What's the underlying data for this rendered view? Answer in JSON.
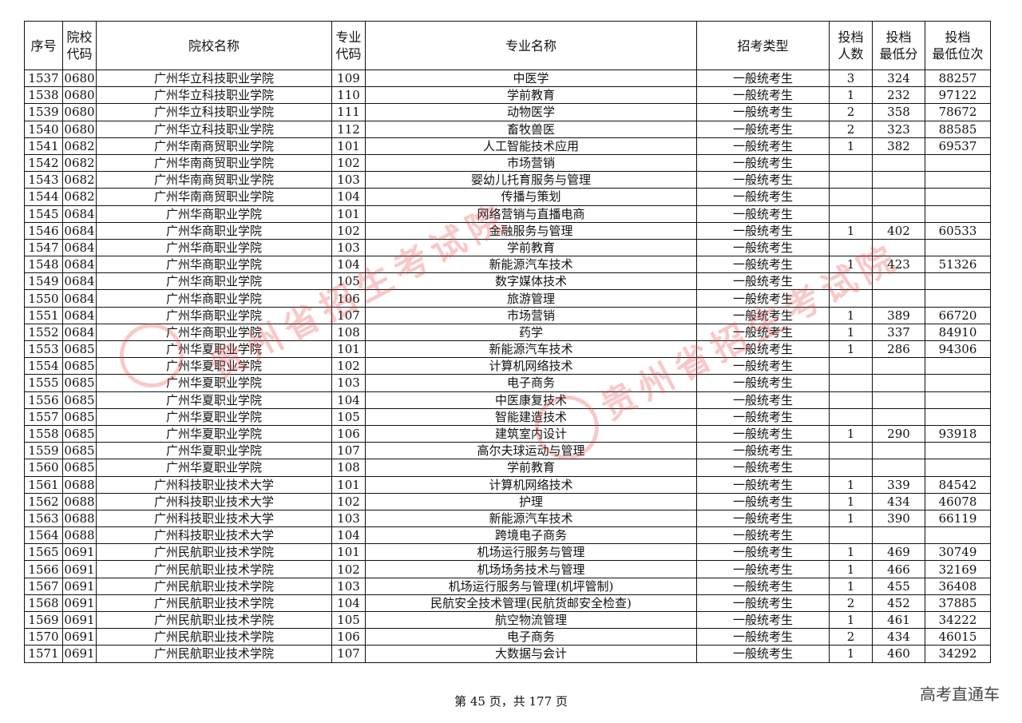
{
  "headers": [
    "序号",
    "院校\n代码",
    "院校名称",
    "专业\n代码",
    "专业名称",
    "招考类型",
    "投档\n人数",
    "投档\n最低分",
    "投档\n最低位次"
  ],
  "rows": [
    [
      "1537",
      "0680",
      "广州华立科技职业学院",
      "109",
      "中医学",
      "一般统考生",
      "3",
      "324",
      "88257"
    ],
    [
      "1538",
      "0680",
      "广州华立科技职业学院",
      "110",
      "学前教育",
      "一般统考生",
      "1",
      "232",
      "97122"
    ],
    [
      "1539",
      "0680",
      "广州华立科技职业学院",
      "111",
      "动物医学",
      "一般统考生",
      "2",
      "358",
      "78672"
    ],
    [
      "1540",
      "0680",
      "广州华立科技职业学院",
      "112",
      "畜牧兽医",
      "一般统考生",
      "2",
      "323",
      "88585"
    ],
    [
      "1541",
      "0682",
      "广州华南商贸职业学院",
      "101",
      "人工智能技术应用",
      "一般统考生",
      "1",
      "382",
      "69537"
    ],
    [
      "1542",
      "0682",
      "广州华南商贸职业学院",
      "102",
      "市场营销",
      "一般统考生",
      "",
      "",
      ""
    ],
    [
      "1543",
      "0682",
      "广州华南商贸职业学院",
      "103",
      "婴幼儿托育服务与管理",
      "一般统考生",
      "",
      "",
      ""
    ],
    [
      "1544",
      "0682",
      "广州华南商贸职业学院",
      "104",
      "传播与策划",
      "一般统考生",
      "",
      "",
      ""
    ],
    [
      "1545",
      "0684",
      "广州华商职业学院",
      "101",
      "网络营销与直播电商",
      "一般统考生",
      "",
      "",
      ""
    ],
    [
      "1546",
      "0684",
      "广州华商职业学院",
      "102",
      "金融服务与管理",
      "一般统考生",
      "1",
      "402",
      "60533"
    ],
    [
      "1547",
      "0684",
      "广州华商职业学院",
      "103",
      "学前教育",
      "一般统考生",
      "",
      "",
      ""
    ],
    [
      "1548",
      "0684",
      "广州华商职业学院",
      "104",
      "新能源汽车技术",
      "一般统考生",
      "1",
      "423",
      "51326"
    ],
    [
      "1549",
      "0684",
      "广州华商职业学院",
      "105",
      "数字媒体技术",
      "一般统考生",
      "",
      "",
      ""
    ],
    [
      "1550",
      "0684",
      "广州华商职业学院",
      "106",
      "旅游管理",
      "一般统考生",
      "",
      "",
      ""
    ],
    [
      "1551",
      "0684",
      "广州华商职业学院",
      "107",
      "市场营销",
      "一般统考生",
      "1",
      "389",
      "66720"
    ],
    [
      "1552",
      "0684",
      "广州华商职业学院",
      "108",
      "药学",
      "一般统考生",
      "1",
      "337",
      "84910"
    ],
    [
      "1553",
      "0685",
      "广州华夏职业学院",
      "101",
      "新能源汽车技术",
      "一般统考生",
      "1",
      "286",
      "94306"
    ],
    [
      "1554",
      "0685",
      "广州华夏职业学院",
      "102",
      "计算机网络技术",
      "一般统考生",
      "",
      "",
      ""
    ],
    [
      "1555",
      "0685",
      "广州华夏职业学院",
      "103",
      "电子商务",
      "一般统考生",
      "",
      "",
      ""
    ],
    [
      "1556",
      "0685",
      "广州华夏职业学院",
      "104",
      "中医康复技术",
      "一般统考生",
      "",
      "",
      ""
    ],
    [
      "1557",
      "0685",
      "广州华夏职业学院",
      "105",
      "智能建造技术",
      "一般统考生",
      "",
      "",
      ""
    ],
    [
      "1558",
      "0685",
      "广州华夏职业学院",
      "106",
      "建筑室内设计",
      "一般统考生",
      "1",
      "290",
      "93918"
    ],
    [
      "1559",
      "0685",
      "广州华夏职业学院",
      "107",
      "高尔夫球运动与管理",
      "一般统考生",
      "",
      "",
      ""
    ],
    [
      "1560",
      "0685",
      "广州华夏职业学院",
      "108",
      "学前教育",
      "一般统考生",
      "",
      "",
      ""
    ],
    [
      "1561",
      "0688",
      "广州科技职业技术大学",
      "101",
      "计算机网络技术",
      "一般统考生",
      "1",
      "339",
      "84542"
    ],
    [
      "1562",
      "0688",
      "广州科技职业技术大学",
      "102",
      "护理",
      "一般统考生",
      "1",
      "434",
      "46078"
    ],
    [
      "1563",
      "0688",
      "广州科技职业技术大学",
      "103",
      "新能源汽车技术",
      "一般统考生",
      "1",
      "390",
      "66119"
    ],
    [
      "1564",
      "0688",
      "广州科技职业技术大学",
      "104",
      "跨境电子商务",
      "一般统考生",
      "",
      "",
      ""
    ],
    [
      "1565",
      "0691",
      "广州民航职业技术学院",
      "101",
      "机场运行服务与管理",
      "一般统考生",
      "1",
      "469",
      "30749"
    ],
    [
      "1566",
      "0691",
      "广州民航职业技术学院",
      "102",
      "机场场务技术与管理",
      "一般统考生",
      "1",
      "466",
      "32169"
    ],
    [
      "1567",
      "0691",
      "广州民航职业技术学院",
      "103",
      "机场运行服务与管理(机坪管制)",
      "一般统考生",
      "1",
      "455",
      "36408"
    ],
    [
      "1568",
      "0691",
      "广州民航职业技术学院",
      "104",
      "民航安全技术管理(民航货邮安全检查)",
      "一般统考生",
      "2",
      "452",
      "37885"
    ],
    [
      "1569",
      "0691",
      "广州民航职业技术学院",
      "105",
      "航空物流管理",
      "一般统考生",
      "1",
      "461",
      "34222"
    ],
    [
      "1570",
      "0691",
      "广州民航职业技术学院",
      "106",
      "电子商务",
      "一般统考生",
      "2",
      "434",
      "46015"
    ],
    [
      "1571",
      "0691",
      "广州民航职业技术学院",
      "107",
      "大数据与会计",
      "一般统考生",
      "1",
      "460",
      "34292"
    ]
  ],
  "watermark": "贵州省招生考试院",
  "footer": "第 45 页，共 177 页",
  "brand": "高考直通车"
}
